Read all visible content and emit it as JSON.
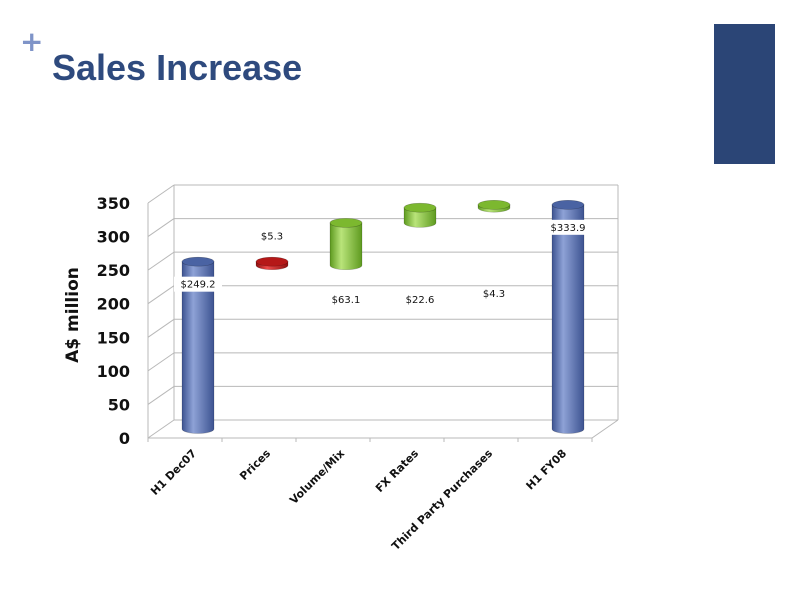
{
  "slide": {
    "title": "Sales Increase",
    "plus_glyph": "+",
    "colors": {
      "title": "#2e4a7e",
      "plus": "#7f94c8",
      "corner_block": "#2b4576",
      "increase": "#8cc63f",
      "decrease": "#d11f1f",
      "total": "#5a73b2",
      "grid": "#b8b8b8",
      "axis_text": "#111111"
    }
  },
  "chart_data": {
    "type": "bar",
    "subtype": "waterfall",
    "title": "",
    "ylabel": "A$ million",
    "xlabel": "",
    "ylim": [
      0,
      350
    ],
    "yticks": [
      0,
      50,
      100,
      150,
      200,
      250,
      300,
      350
    ],
    "grid": true,
    "categories": [
      "H1 Dec07",
      "Prices",
      "Volume/Mix",
      "FX Rates",
      "Third Party Purchases",
      "H1 FY08"
    ],
    "bars": [
      {
        "kind": "total",
        "start": 0,
        "end": 249.2,
        "label": "$249.2"
      },
      {
        "kind": "decrease",
        "start": 249.2,
        "end": 243.9,
        "label": "$5.3"
      },
      {
        "kind": "increase",
        "start": 243.9,
        "end": 307.0,
        "label": "$63.1"
      },
      {
        "kind": "increase",
        "start": 307.0,
        "end": 329.6,
        "label": "$22.6"
      },
      {
        "kind": "increase",
        "start": 329.6,
        "end": 333.9,
        "label": "$4.3"
      },
      {
        "kind": "total",
        "start": 0,
        "end": 333.9,
        "label": "$333.9"
      }
    ]
  }
}
